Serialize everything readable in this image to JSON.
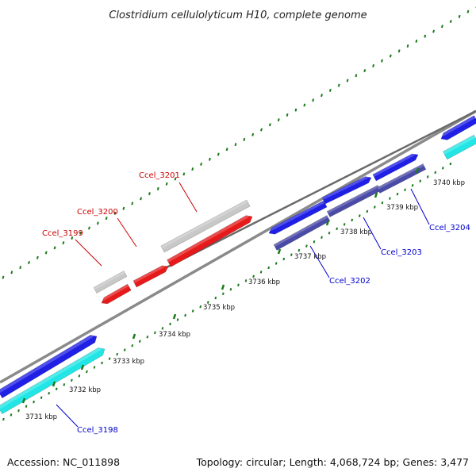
{
  "header": {
    "title": "Clostridium cellulolyticum H10, complete genome"
  },
  "footer": {
    "accession": "Accession: NC_011898",
    "stats": "Topology: circular; Length: 4,068,724 bp; Genes: 3,477"
  },
  "colors": {
    "backbone": "#8a8a8a",
    "tick": "#1a7a1a",
    "gene_blue": "#1f1fe6",
    "gene_navy": "#4a4aa8",
    "gene_cyan": "#22e6e6",
    "gene_red": "#e61a1a",
    "gene_grey": "#c8c8c8",
    "label_red": "#cc0000",
    "label_blue": "#0000cc"
  },
  "scale_ticks": [
    {
      "label": "3731 kbp"
    },
    {
      "label": "3732 kbp"
    },
    {
      "label": "3733 kbp"
    },
    {
      "label": "3734 kbp"
    },
    {
      "label": "3735 kbp"
    },
    {
      "label": "3736 kbp"
    },
    {
      "label": "3737 kbp"
    },
    {
      "label": "3738 kbp"
    },
    {
      "label": "3739 kbp"
    },
    {
      "label": "3740 kbp"
    }
  ],
  "gene_labels": [
    {
      "text": "Ccel_3198",
      "color": "label_blue"
    },
    {
      "text": "Ccel_3199",
      "color": "label_red"
    },
    {
      "text": "Ccel_3200",
      "color": "label_red"
    },
    {
      "text": "Ccel_3201",
      "color": "label_red"
    },
    {
      "text": "Ccel_3202",
      "color": "label_blue"
    },
    {
      "text": "Ccel_3203",
      "color": "label_blue"
    },
    {
      "text": "Ccel_3204",
      "color": "label_blue"
    }
  ]
}
